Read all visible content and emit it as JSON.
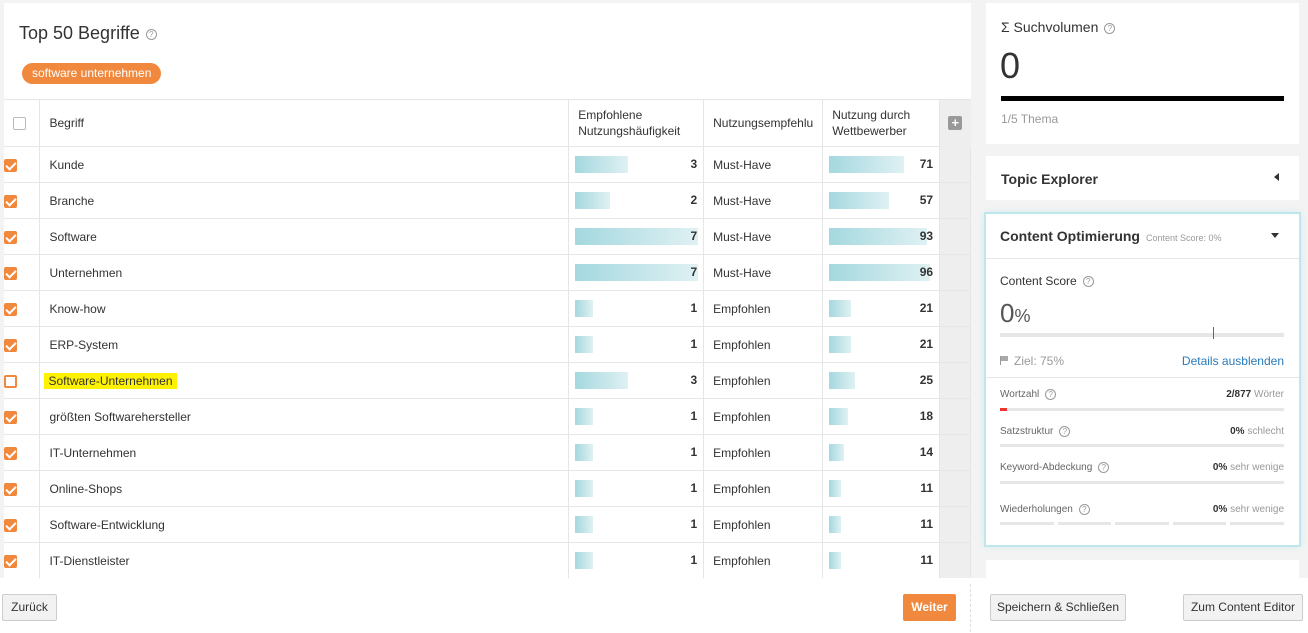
{
  "main": {
    "title": "Top 50 Begriffe",
    "help": "?",
    "tag": "software unternehmen",
    "columns": {
      "term": "Begriff",
      "freq": "Empfohlene Nutzungshäufigkeit",
      "rec": "Nutzungsempfehlu",
      "comp": "Nutzung durch Wettbewerber",
      "add": "+"
    },
    "rows": [
      {
        "term": "Kunde",
        "checked": true,
        "freq": 3,
        "rec": "Must-Have",
        "comp": 71
      },
      {
        "term": "Branche",
        "checked": true,
        "freq": 2,
        "rec": "Must-Have",
        "comp": 57
      },
      {
        "term": "Software",
        "checked": true,
        "freq": 7,
        "rec": "Must-Have",
        "comp": 93
      },
      {
        "term": "Unternehmen",
        "checked": true,
        "freq": 7,
        "rec": "Must-Have",
        "comp": 96
      },
      {
        "term": "Know-how",
        "checked": true,
        "freq": 1,
        "rec": "Empfohlen",
        "comp": 21
      },
      {
        "term": "ERP-System",
        "checked": true,
        "freq": 1,
        "rec": "Empfohlen",
        "comp": 21
      },
      {
        "term": "Software-Unternehmen",
        "checked": false,
        "highlight": true,
        "freq": 3,
        "rec": "Empfohlen",
        "comp": 25
      },
      {
        "term": "größten Softwarehersteller",
        "checked": true,
        "freq": 1,
        "rec": "Empfohlen",
        "comp": 18
      },
      {
        "term": "IT-Unternehmen",
        "checked": true,
        "freq": 1,
        "rec": "Empfohlen",
        "comp": 14
      },
      {
        "term": "Online-Shops",
        "checked": true,
        "freq": 1,
        "rec": "Empfohlen",
        "comp": 11
      },
      {
        "term": "Software-Entwicklung",
        "checked": true,
        "freq": 1,
        "rec": "Empfohlen",
        "comp": 11
      },
      {
        "term": "IT-Dienstleister",
        "checked": true,
        "freq": 1,
        "rec": "Empfohlen",
        "comp": 11
      }
    ]
  },
  "footer": {
    "back": "Zurück",
    "next": "Weiter",
    "save_close": "Speichern & Schließen",
    "to_editor": "Zum Content Editor"
  },
  "search_volume": {
    "title": "Σ Suchvolumen",
    "value": "0",
    "subtitle": "1/5 Thema"
  },
  "topic_explorer": {
    "title": "Topic Explorer"
  },
  "content_opt": {
    "title": "Content Optimierung",
    "score_small": "Content Score: 0%",
    "score_label": "Content Score",
    "score_value": "0",
    "score_unit": "%",
    "goal": "Ziel: 75%",
    "goal_fraction": 0.75,
    "details_link": "Details ausblenden",
    "metrics": {
      "wortzahl": {
        "label": "Wortzahl",
        "value": "2/877",
        "suffix": "Wörter",
        "fill_fraction": 0.025
      },
      "satzstruktur": {
        "label": "Satzstruktur",
        "value": "0%",
        "suffix": "schlecht"
      },
      "keyword": {
        "label": "Keyword-Abdeckung",
        "value": "0%",
        "suffix": "sehr wenige"
      },
      "wiederholungen": {
        "label": "Wiederholungen",
        "value": "0%",
        "suffix": "sehr wenige"
      }
    }
  },
  "colors": {
    "accent": "#f0883e",
    "bar": "#a4d8df",
    "link": "#2a7ab9",
    "highlight": "#fff200"
  }
}
